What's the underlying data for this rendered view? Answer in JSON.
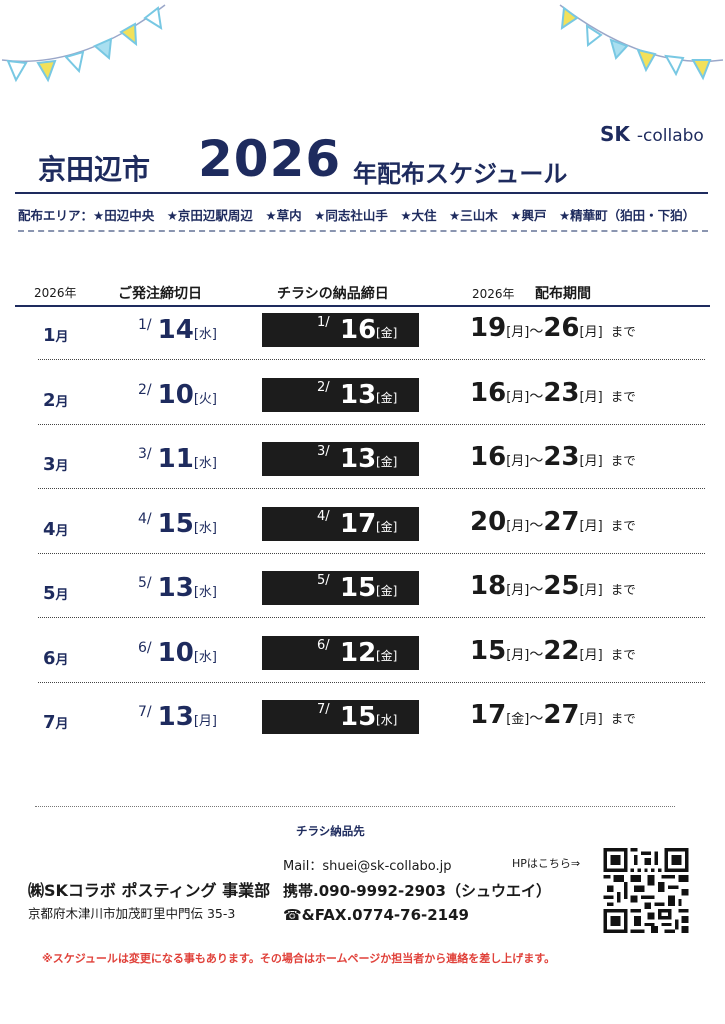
{
  "brand": {
    "main": "SK",
    "sub": "-collabo"
  },
  "title": {
    "city": "京田辺市",
    "year": "2026",
    "rest": "年配布スケジュール"
  },
  "area": {
    "label": "配布エリア：",
    "items": "★田辺中央　★京田辺駅周辺　★草内　★同志社山手　★大住　★三山木　★興戸　★精華町（狛田・下狛）"
  },
  "table_header": {
    "year_left": "2026年",
    "deadline": "ご発注締切日",
    "delivery": "チラシの納品締日",
    "year_right": "2026年",
    "period": "配布期間"
  },
  "rows": [
    {
      "month": "1",
      "month_suffix": "月",
      "dl_pre": "1/",
      "dl_day": "14",
      "dl_dow": "[水]",
      "dv_pre": "1/",
      "dv_day": "16",
      "dv_dow": "[金]",
      "p_start": "19",
      "p_start_dow": "[月]",
      "tilde": "～",
      "p_end": "26",
      "p_end_dow": "[月]",
      "made": "まで"
    },
    {
      "month": "2",
      "month_suffix": "月",
      "dl_pre": "2/",
      "dl_day": "10",
      "dl_dow": "[火]",
      "dv_pre": "2/",
      "dv_day": "13",
      "dv_dow": "[金]",
      "p_start": "16",
      "p_start_dow": "[月]",
      "tilde": "～",
      "p_end": "23",
      "p_end_dow": "[月]",
      "made": "まで"
    },
    {
      "month": "3",
      "month_suffix": "月",
      "dl_pre": "3/",
      "dl_day": "11",
      "dl_dow": "[水]",
      "dv_pre": "3/",
      "dv_day": "13",
      "dv_dow": "[金]",
      "p_start": "16",
      "p_start_dow": "[月]",
      "tilde": "～",
      "p_end": "23",
      "p_end_dow": "[月]",
      "made": "まで"
    },
    {
      "month": "4",
      "month_suffix": "月",
      "dl_pre": "4/",
      "dl_day": "15",
      "dl_dow": "[水]",
      "dv_pre": "4/",
      "dv_day": "17",
      "dv_dow": "[金]",
      "p_start": "20",
      "p_start_dow": "[月]",
      "tilde": "～",
      "p_end": "27",
      "p_end_dow": "[月]",
      "made": "まで"
    },
    {
      "month": "5",
      "month_suffix": "月",
      "dl_pre": "5/",
      "dl_day": "13",
      "dl_dow": "[水]",
      "dv_pre": "5/",
      "dv_day": "15",
      "dv_dow": "[金]",
      "p_start": "18",
      "p_start_dow": "[月]",
      "tilde": "～",
      "p_end": "25",
      "p_end_dow": "[月]",
      "made": "まで"
    },
    {
      "month": "6",
      "month_suffix": "月",
      "dl_pre": "6/",
      "dl_day": "10",
      "dl_dow": "[水]",
      "dv_pre": "6/",
      "dv_day": "12",
      "dv_dow": "[金]",
      "p_start": "15",
      "p_start_dow": "[月]",
      "tilde": "～",
      "p_end": "22",
      "p_end_dow": "[月]",
      "made": "まで"
    },
    {
      "month": "7",
      "month_suffix": "月",
      "dl_pre": "7/",
      "dl_day": "13",
      "dl_dow": "[月]",
      "dv_pre": "7/",
      "dv_day": "15",
      "dv_dow": "[水]",
      "p_start": "17",
      "p_start_dow": "[金]",
      "tilde": "～",
      "p_end": "27",
      "p_end_dow": "[月]",
      "made": "まで"
    }
  ],
  "footer": {
    "delivery_to": "チラシ納品先",
    "company": "㈱SKコラボ ポスティング 事業部",
    "address": "京都府木津川市加茂町里中門伝 35-3",
    "mail": "Mail：shuei@sk-collabo.jp",
    "mobile": "携帯.090-9992-2903（シュウエイ）",
    "fax": "☎&FAX.0774-76-2149",
    "hp": "HPはこちら⇒"
  },
  "notice": "※スケジュールは変更になる事もあります。その場合はホームページか担当者から連絡を差し上げます。",
  "colors": {
    "navy": "#1e2b5e",
    "flag_yellow": "#f2e15a",
    "flag_blue": "#a9dff0",
    "notice_red": "#e0413a"
  }
}
